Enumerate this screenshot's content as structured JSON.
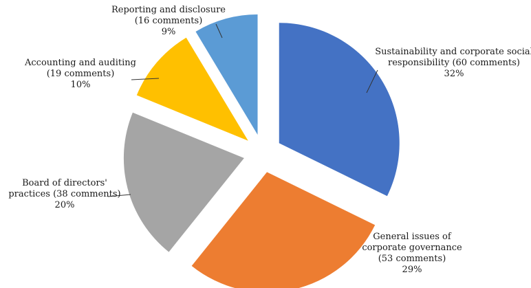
{
  "chart_data": {
    "type": "pie",
    "exploded": true,
    "legend": "none",
    "slices": [
      {
        "label": "Sustainability and corporate social responsibility",
        "comments": 60,
        "percent": 32,
        "color": "#4472C4",
        "label_lines": [
          "Sustainability and corporate social",
          "responsibility (60 comments)",
          "32%"
        ]
      },
      {
        "label": "General issues of corporate governance",
        "comments": 53,
        "percent": 29,
        "color": "#ED7D31",
        "label_lines": [
          "General issues of",
          "corporate governance",
          "(53 comments)",
          "29%"
        ]
      },
      {
        "label": "Board of directors' practices",
        "comments": 38,
        "percent": 20,
        "color": "#A5A5A5",
        "label_lines": [
          "Board of directors'",
          "practices (38 comments)",
          "20%"
        ]
      },
      {
        "label": "Accounting and auditing",
        "comments": 19,
        "percent": 10,
        "color": "#FFC000",
        "label_lines": [
          "Accounting and auditing",
          "(19 comments)",
          "10%"
        ]
      },
      {
        "label": "Reporting and disclosure",
        "comments": 16,
        "percent": 9,
        "color": "#5B9BD5",
        "label_lines": [
          "Reporting and disclosure",
          "(16 comments)",
          "9%"
        ]
      }
    ]
  }
}
